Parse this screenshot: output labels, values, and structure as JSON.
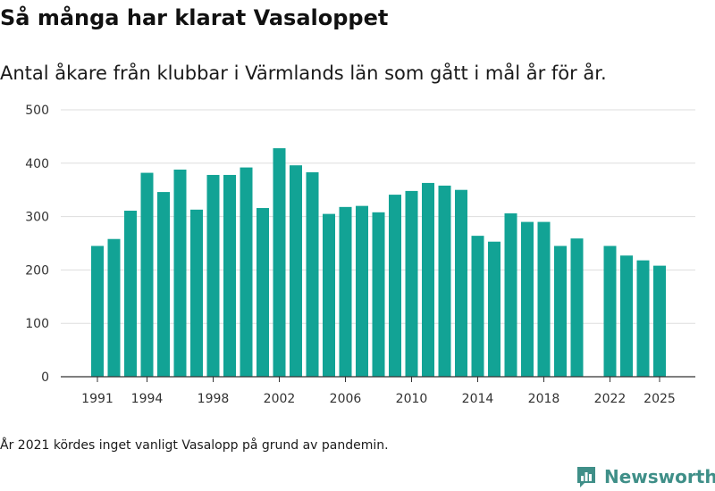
{
  "title": "Så många har klarat Vasaloppet",
  "subtitle": "Antal åkare från klubbar i Värmlands län som gått i mål år för år.",
  "note": "År 2021 kördes inget vanligt Vasalopp på grund av pandemin.",
  "logo": {
    "text": "Newsworthy",
    "icon": "newsworthy-logo-icon",
    "color": "#3f8f88"
  },
  "chart_data": {
    "type": "bar",
    "bar_color": "#12a395",
    "x": [
      1991,
      1992,
      1993,
      1994,
      1995,
      1996,
      1997,
      1998,
      1999,
      2000,
      2001,
      2002,
      2003,
      2004,
      2005,
      2006,
      2007,
      2008,
      2009,
      2010,
      2011,
      2012,
      2013,
      2014,
      2015,
      2016,
      2017,
      2018,
      2019,
      2020,
      2021,
      2022,
      2023,
      2024,
      2025
    ],
    "values": [
      245,
      258,
      311,
      382,
      346,
      388,
      313,
      378,
      378,
      392,
      316,
      428,
      396,
      383,
      305,
      318,
      320,
      308,
      341,
      348,
      363,
      358,
      350,
      264,
      253,
      306,
      290,
      290,
      245,
      259,
      null,
      245,
      227,
      218,
      208
    ],
    "x_ticks": [
      "1991",
      "1994",
      "1998",
      "2002",
      "2006",
      "2010",
      "2014",
      "2018",
      "2022",
      "2025"
    ],
    "y_ticks": [
      "0",
      "100",
      "200",
      "300",
      "400",
      "500"
    ],
    "ylim": [
      0,
      500
    ],
    "xlabel": "",
    "ylabel": "",
    "grid": true,
    "legend": "none"
  }
}
